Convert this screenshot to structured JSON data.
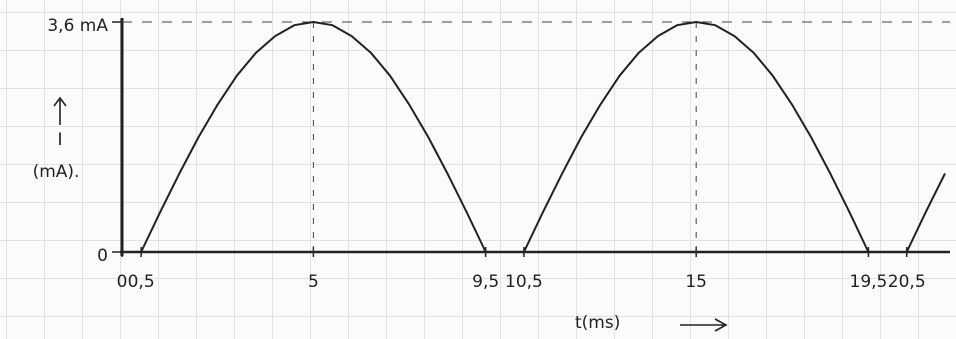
{
  "chart_data": {
    "type": "line",
    "x_label": "t(ms)",
    "y_label": "I",
    "y_unit": "(mA).",
    "xlim": [
      0,
      21.5
    ],
    "ylim": [
      0,
      3.6
    ],
    "xticks": [
      0,
      {
        "value": 0.5,
        "label": "0,5"
      },
      5,
      {
        "value": 9.5,
        "label": "9,5"
      },
      {
        "value": 10.5,
        "label": "10,5"
      },
      15,
      {
        "value": 19.5,
        "label": "19,5"
      },
      {
        "value": 20.5,
        "label": "20,5"
      }
    ],
    "yticks": [
      0,
      {
        "value": 3.6,
        "label": "3,6 mA"
      }
    ],
    "guides": {
      "x": [
        5,
        15
      ],
      "y": [
        3.6
      ]
    },
    "series": [
      {
        "color": "#222222",
        "x": [
          0,
          0.5,
          1,
          1.5,
          2,
          2.5,
          3,
          3.5,
          4,
          4.5,
          5,
          5.5,
          6,
          6.5,
          7,
          7.5,
          8,
          8.5,
          9,
          9.5,
          10.5,
          11,
          11.5,
          12,
          12.5,
          13,
          13.5,
          14,
          14.5,
          15,
          15.5,
          16,
          16.5,
          17,
          17.5,
          18,
          18.5,
          19,
          19.5,
          20.5,
          21,
          21.5
        ],
        "values": [
          0,
          0,
          0.63,
          1.23,
          1.8,
          2.31,
          2.76,
          3.12,
          3.38,
          3.55,
          3.6,
          3.55,
          3.38,
          3.12,
          2.76,
          2.31,
          1.8,
          1.23,
          0.63,
          0,
          0,
          0.63,
          1.23,
          1.8,
          2.31,
          2.76,
          3.12,
          3.38,
          3.55,
          3.6,
          3.55,
          3.38,
          3.12,
          2.76,
          2.31,
          1.8,
          1.23,
          0.63,
          0,
          0,
          0.63,
          1.23
        ]
      }
    ]
  }
}
